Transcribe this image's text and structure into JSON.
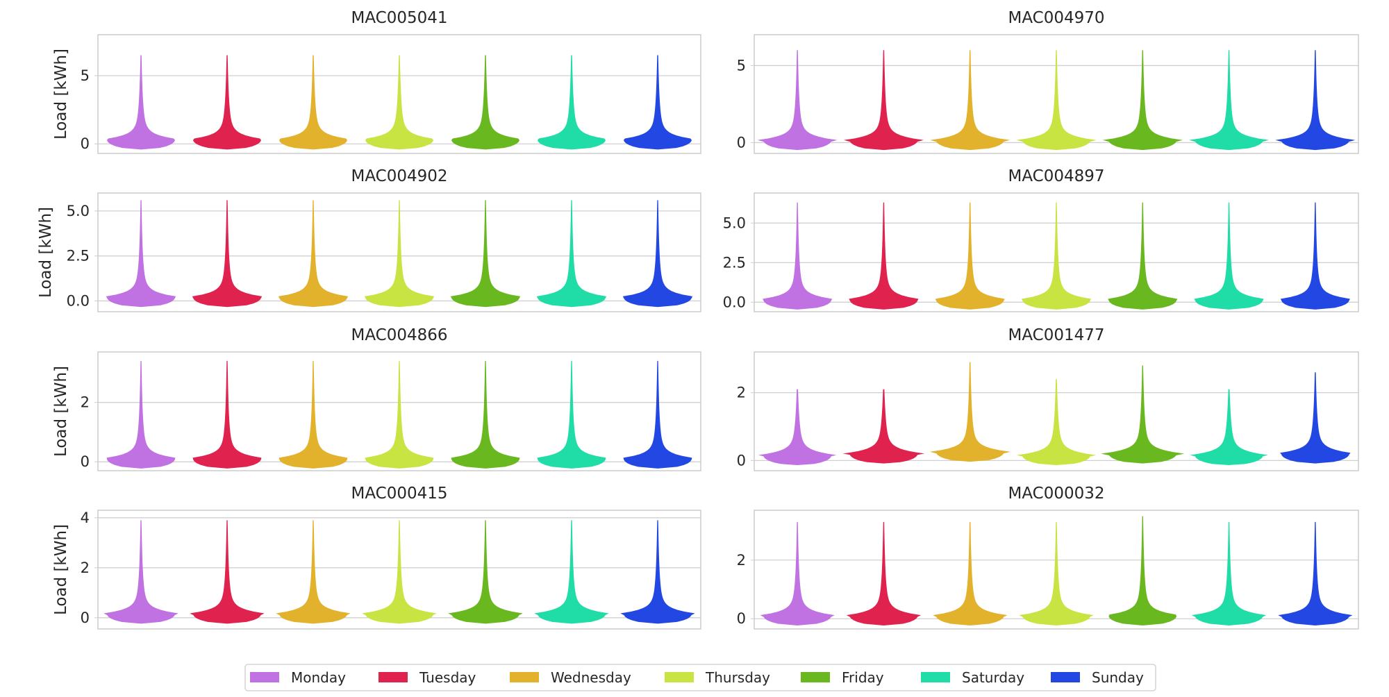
{
  "colors": {
    "Monday": "#c071e2",
    "Tuesday": "#e0224e",
    "Wednesday": "#e3b22c",
    "Thursday": "#c8e443",
    "Friday": "#6ab820",
    "Saturday": "#20dca6",
    "Sunday": "#2347e2",
    "grid": "#d0d0d0",
    "frame": "#cccccc",
    "text": "#262626"
  },
  "legend": {
    "entries": [
      "Monday",
      "Tuesday",
      "Wednesday",
      "Thursday",
      "Friday",
      "Saturday",
      "Sunday"
    ],
    "placement": "bottom-center"
  },
  "chart_data": [
    {
      "type": "violin",
      "title": "MAC005041",
      "ylabel": "Load [kWh]",
      "categories": [
        "Monday",
        "Tuesday",
        "Wednesday",
        "Thursday",
        "Friday",
        "Saturday",
        "Sunday"
      ],
      "ylim": [
        -0.7,
        8.0
      ],
      "yticks": [
        0,
        5
      ],
      "ytick_labels": [
        "0",
        "5"
      ],
      "max": [
        6.5,
        6.5,
        6.5,
        6.5,
        6.5,
        6.5,
        6.5
      ],
      "median": [
        0.3,
        0.3,
        0.3,
        0.3,
        0.3,
        0.3,
        0.3
      ],
      "grid": true
    },
    {
      "type": "violin",
      "title": "MAC004970",
      "ylabel": "",
      "categories": [
        "Monday",
        "Tuesday",
        "Wednesday",
        "Thursday",
        "Friday",
        "Saturday",
        "Sunday"
      ],
      "ylim": [
        -0.7,
        7.0
      ],
      "yticks": [
        0,
        5
      ],
      "ytick_labels": [
        "0",
        "5"
      ],
      "max": [
        6.0,
        6.0,
        6.0,
        6.0,
        6.0,
        6.0,
        6.0
      ],
      "median": [
        0.15,
        0.15,
        0.15,
        0.15,
        0.15,
        0.15,
        0.15
      ],
      "grid": true
    },
    {
      "type": "violin",
      "title": "MAC004902",
      "ylabel": "Load [kWh]",
      "categories": [
        "Monday",
        "Tuesday",
        "Wednesday",
        "Thursday",
        "Friday",
        "Saturday",
        "Sunday"
      ],
      "ylim": [
        -0.6,
        6.0
      ],
      "yticks": [
        0,
        2.5,
        5.0
      ],
      "ytick_labels": [
        "0.0",
        "2.5",
        "5.0"
      ],
      "max": [
        5.6,
        5.6,
        5.6,
        5.6,
        5.6,
        5.6,
        5.6
      ],
      "median": [
        0.2,
        0.2,
        0.2,
        0.2,
        0.2,
        0.2,
        0.2
      ],
      "grid": true
    },
    {
      "type": "violin",
      "title": "MAC004897",
      "ylabel": "",
      "categories": [
        "Monday",
        "Tuesday",
        "Wednesday",
        "Thursday",
        "Friday",
        "Saturday",
        "Sunday"
      ],
      "ylim": [
        -0.6,
        6.9
      ],
      "yticks": [
        0,
        2.5,
        5.0
      ],
      "ytick_labels": [
        "0.0",
        "2.5",
        "5.0"
      ],
      "max": [
        6.3,
        6.3,
        6.3,
        6.3,
        6.3,
        6.3,
        6.3
      ],
      "median": [
        0.15,
        0.15,
        0.15,
        0.15,
        0.15,
        0.15,
        0.15
      ],
      "grid": true
    },
    {
      "type": "violin",
      "title": "MAC004866",
      "ylabel": "Load [kWh]",
      "categories": [
        "Monday",
        "Tuesday",
        "Wednesday",
        "Thursday",
        "Friday",
        "Saturday",
        "Sunday"
      ],
      "ylim": [
        -0.3,
        3.7
      ],
      "yticks": [
        0,
        2
      ],
      "ytick_labels": [
        "0",
        "2"
      ],
      "max": [
        3.4,
        3.4,
        3.4,
        3.4,
        3.4,
        3.4,
        3.4
      ],
      "median": [
        0.1,
        0.1,
        0.1,
        0.1,
        0.1,
        0.1,
        0.1
      ],
      "grid": true
    },
    {
      "type": "violin",
      "title": "MAC001477",
      "ylabel": "",
      "categories": [
        "Monday",
        "Tuesday",
        "Wednesday",
        "Thursday",
        "Friday",
        "Saturday",
        "Sunday"
      ],
      "ylim": [
        -0.3,
        3.2
      ],
      "yticks": [
        0,
        2
      ],
      "ytick_labels": [
        "0",
        "2"
      ],
      "max": [
        2.1,
        2.1,
        2.9,
        2.4,
        2.8,
        2.1,
        2.6
      ],
      "median": [
        0.15,
        0.2,
        0.25,
        0.15,
        0.2,
        0.15,
        0.2
      ],
      "grid": true
    },
    {
      "type": "violin",
      "title": "MAC000415",
      "ylabel": "Load [kWh]",
      "categories": [
        "Monday",
        "Tuesday",
        "Wednesday",
        "Thursday",
        "Friday",
        "Saturday",
        "Sunday"
      ],
      "ylim": [
        -0.45,
        4.3
      ],
      "yticks": [
        0,
        2,
        4
      ],
      "ytick_labels": [
        "0",
        "2",
        "4"
      ],
      "max": [
        3.9,
        3.9,
        3.9,
        3.9,
        3.9,
        3.9,
        3.9
      ],
      "median": [
        0.15,
        0.15,
        0.15,
        0.15,
        0.15,
        0.15,
        0.15
      ],
      "grid": true
    },
    {
      "type": "violin",
      "title": "MAC000032",
      "ylabel": "",
      "categories": [
        "Monday",
        "Tuesday",
        "Wednesday",
        "Thursday",
        "Friday",
        "Saturday",
        "Sunday"
      ],
      "ylim": [
        -0.35,
        3.7
      ],
      "yticks": [
        0,
        2
      ],
      "ytick_labels": [
        "0",
        "2"
      ],
      "max": [
        3.3,
        3.3,
        3.3,
        3.3,
        3.5,
        3.3,
        3.3
      ],
      "median": [
        0.1,
        0.1,
        0.1,
        0.1,
        0.1,
        0.1,
        0.1
      ],
      "grid": true
    }
  ]
}
